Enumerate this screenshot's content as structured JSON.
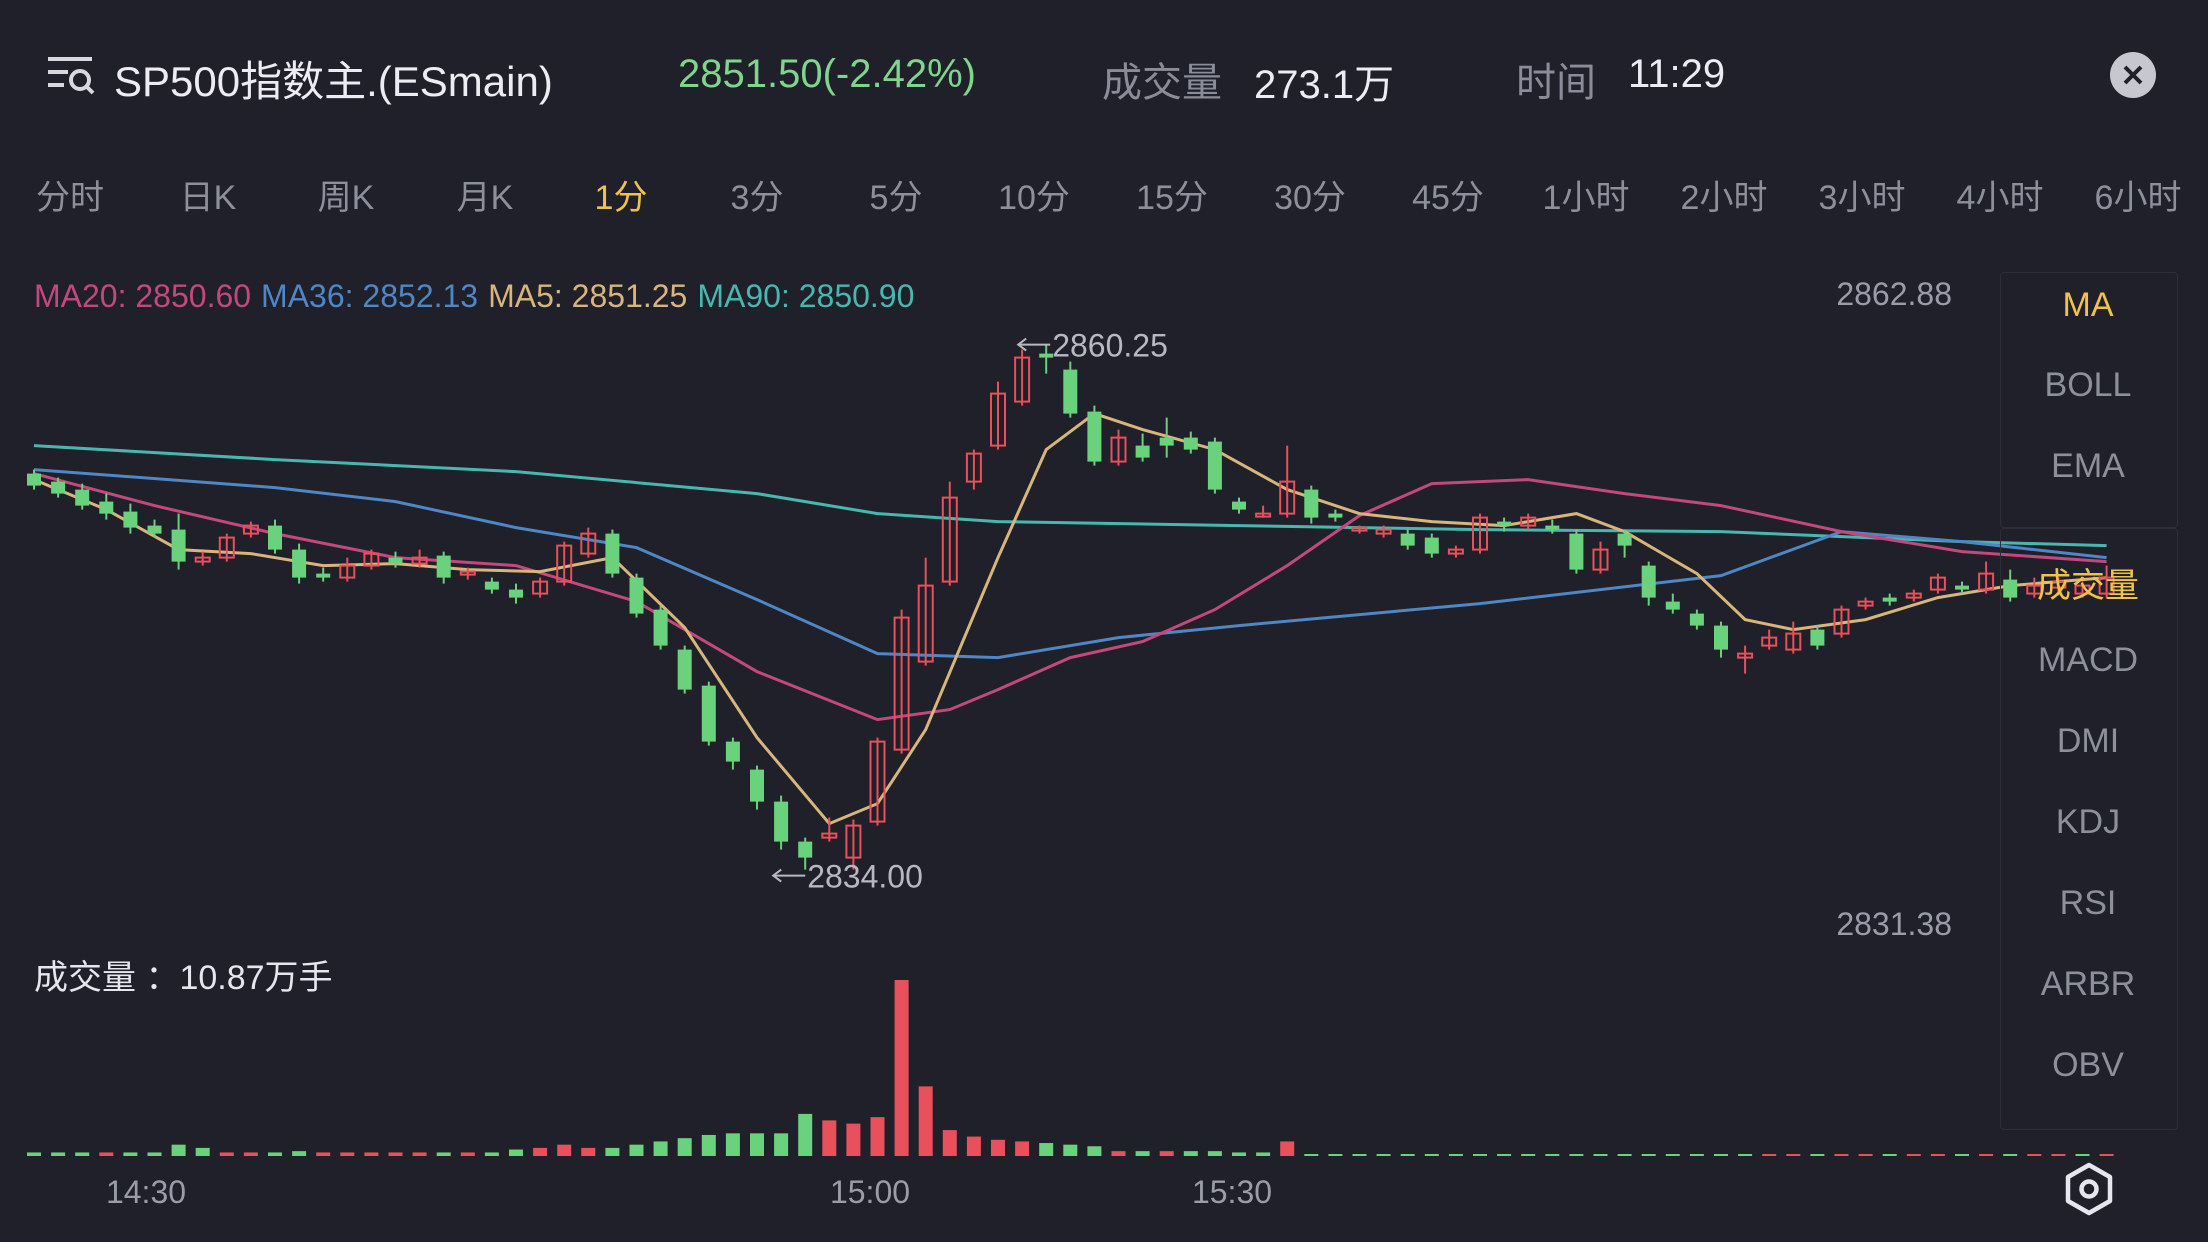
{
  "header": {
    "title": "SP500指数主.(ESmain)",
    "price": "2851.50(-2.42%)",
    "volume_label": "成交量",
    "volume_value": "273.1万",
    "time_label": "时间",
    "time_value": "11:29"
  },
  "tabs": [
    "分时",
    "日K",
    "周K",
    "月K",
    "1分",
    "3分",
    "5分",
    "10分",
    "15分",
    "30分",
    "45分",
    "1小时",
    "2小时",
    "3小时",
    "4小时",
    "6小时"
  ],
  "active_tab": "1分",
  "legend": {
    "ma20": "MA20: 2850.60",
    "ma36": "MA36: 2852.13",
    "ma5": "MA5: 2851.25",
    "ma90": "MA90: 2850.90"
  },
  "axis": {
    "top": "2862.88",
    "bottom": "2831.38"
  },
  "annotations": {
    "high": "2860.25",
    "low": "2834.00"
  },
  "volume_caption": "成交量 ：10.87万手",
  "x_labels": [
    "14:30",
    "15:00",
    "15:30"
  ],
  "side_indicators": {
    "main": [
      "MA",
      "BOLL",
      "EMA"
    ],
    "sub": [
      "成交量",
      "MACD",
      "DMI",
      "KDJ",
      "RSI",
      "ARBR",
      "OBV"
    ]
  },
  "colors": {
    "up": "#e8505b",
    "down": "#6ad27d",
    "ma5": "#d8b57c",
    "ma20": "#c2487d",
    "ma36": "#4f86c6",
    "ma90": "#48b7b1",
    "accent": "#f0c14b",
    "background": "#1f2029"
  },
  "icons": {
    "menu": "menu-search-icon",
    "close": "close-icon",
    "settings": "settings-hexagon-icon"
  },
  "chart_data": {
    "type": "candlestick",
    "ylim": [
      2831.38,
      2862.88
    ],
    "x_ticks": [
      "14:30",
      "15:00",
      "15:30"
    ],
    "high_marker": 2860.25,
    "low_marker": 2834.0,
    "candles": [
      [
        2853.8,
        2853.2,
        2854.0,
        2853.0
      ],
      [
        2853.4,
        2852.8,
        2853.6,
        2852.6
      ],
      [
        2853.0,
        2852.2,
        2853.3,
        2852.0
      ],
      [
        2852.4,
        2851.8,
        2852.8,
        2851.5
      ],
      [
        2851.9,
        2851.1,
        2852.3,
        2850.8
      ],
      [
        2851.2,
        2850.8,
        2851.5,
        2850.6
      ],
      [
        2851.0,
        2849.4,
        2851.8,
        2849.0
      ],
      [
        2849.4,
        2849.6,
        2849.9,
        2849.2
      ],
      [
        2849.6,
        2850.6,
        2850.8,
        2849.4
      ],
      [
        2850.8,
        2851.2,
        2851.4,
        2850.6
      ],
      [
        2851.2,
        2850.0,
        2851.5,
        2849.8
      ],
      [
        2850.0,
        2848.6,
        2850.3,
        2848.3
      ],
      [
        2848.8,
        2848.6,
        2849.1,
        2848.4
      ],
      [
        2848.6,
        2849.2,
        2849.6,
        2848.4
      ],
      [
        2849.2,
        2849.8,
        2850.0,
        2849.0
      ],
      [
        2849.6,
        2849.3,
        2849.9,
        2849.1
      ],
      [
        2849.3,
        2849.6,
        2850.0,
        2849.1
      ],
      [
        2849.7,
        2848.6,
        2849.9,
        2848.3
      ],
      [
        2848.8,
        2848.9,
        2849.1,
        2848.5
      ],
      [
        2848.4,
        2848.0,
        2848.6,
        2847.8
      ],
      [
        2848.0,
        2847.6,
        2848.3,
        2847.3
      ],
      [
        2847.8,
        2848.4,
        2848.6,
        2847.6
      ],
      [
        2848.4,
        2850.2,
        2850.4,
        2848.2
      ],
      [
        2849.8,
        2850.8,
        2851.1,
        2849.6
      ],
      [
        2850.8,
        2848.8,
        2851.0,
        2848.6
      ],
      [
        2848.6,
        2846.8,
        2848.8,
        2846.6
      ],
      [
        2847.0,
        2845.2,
        2847.2,
        2845.0
      ],
      [
        2845.0,
        2843.0,
        2845.2,
        2842.8
      ],
      [
        2843.2,
        2840.4,
        2843.4,
        2840.2
      ],
      [
        2840.4,
        2839.4,
        2840.6,
        2839.0
      ],
      [
        2839.0,
        2837.4,
        2839.2,
        2837.0
      ],
      [
        2837.4,
        2835.4,
        2837.7,
        2835.0
      ],
      [
        2835.4,
        2834.6,
        2835.6,
        2834.0
      ],
      [
        2835.6,
        2835.8,
        2836.6,
        2835.4
      ],
      [
        2834.6,
        2836.2,
        2836.5,
        2834.0
      ],
      [
        2836.4,
        2840.4,
        2840.6,
        2836.2
      ],
      [
        2840.0,
        2846.6,
        2847.0,
        2839.8
      ],
      [
        2844.4,
        2848.2,
        2849.6,
        2844.2
      ],
      [
        2848.4,
        2852.6,
        2853.4,
        2848.2
      ],
      [
        2853.4,
        2854.8,
        2855.0,
        2853.0
      ],
      [
        2855.2,
        2857.8,
        2858.4,
        2855.0
      ],
      [
        2857.4,
        2859.6,
        2860.0,
        2857.2
      ],
      [
        2859.8,
        2859.6,
        2860.25,
        2858.8
      ],
      [
        2859.0,
        2856.8,
        2859.4,
        2856.6
      ],
      [
        2856.9,
        2854.4,
        2857.2,
        2854.2
      ],
      [
        2854.4,
        2855.6,
        2856.0,
        2854.2
      ],
      [
        2855.2,
        2854.6,
        2855.8,
        2854.4
      ],
      [
        2855.6,
        2855.2,
        2856.6,
        2854.6
      ],
      [
        2855.6,
        2855.0,
        2855.9,
        2854.8
      ],
      [
        2855.4,
        2853.0,
        2855.6,
        2852.8
      ],
      [
        2852.4,
        2852.0,
        2852.6,
        2851.8
      ],
      [
        2851.8,
        2851.8,
        2852.2,
        2851.6
      ],
      [
        2851.8,
        2853.4,
        2855.2,
        2851.6
      ],
      [
        2853.0,
        2851.6,
        2853.2,
        2851.3
      ],
      [
        2851.8,
        2851.6,
        2852.0,
        2851.4
      ],
      [
        2851.0,
        2851.1,
        2851.2,
        2850.8
      ],
      [
        2850.8,
        2851.0,
        2851.2,
        2850.6
      ],
      [
        2850.8,
        2850.2,
        2851.0,
        2850.0
      ],
      [
        2850.6,
        2849.8,
        2850.8,
        2849.6
      ],
      [
        2849.8,
        2850.0,
        2850.2,
        2849.6
      ],
      [
        2850.0,
        2851.6,
        2851.8,
        2849.8
      ],
      [
        2851.4,
        2851.2,
        2851.6,
        2850.9
      ],
      [
        2851.2,
        2851.6,
        2851.8,
        2851.0
      ],
      [
        2851.2,
        2851.0,
        2851.5,
        2850.8
      ],
      [
        2850.8,
        2849.0,
        2851.0,
        2848.8
      ],
      [
        2849.0,
        2850.0,
        2850.4,
        2848.8
      ],
      [
        2850.8,
        2850.2,
        2851.0,
        2849.6
      ],
      [
        2849.2,
        2847.6,
        2849.4,
        2847.2
      ],
      [
        2847.4,
        2847.0,
        2847.8,
        2846.8
      ],
      [
        2846.8,
        2846.2,
        2847.0,
        2846.0
      ],
      [
        2846.2,
        2845.0,
        2846.4,
        2844.6
      ],
      [
        2844.6,
        2844.8,
        2845.2,
        2843.8
      ],
      [
        2845.2,
        2845.6,
        2846.0,
        2845.0
      ],
      [
        2845.0,
        2845.8,
        2846.4,
        2844.8
      ],
      [
        2846.0,
        2845.2,
        2846.2,
        2845.0
      ],
      [
        2845.8,
        2847.0,
        2847.2,
        2845.6
      ],
      [
        2847.2,
        2847.4,
        2847.6,
        2847.0
      ],
      [
        2847.6,
        2847.4,
        2847.8,
        2847.2
      ],
      [
        2847.6,
        2847.8,
        2848.0,
        2847.4
      ],
      [
        2848.0,
        2848.6,
        2848.8,
        2847.8
      ],
      [
        2848.2,
        2848.0,
        2848.4,
        2847.8
      ],
      [
        2848.0,
        2848.8,
        2849.4,
        2847.8
      ],
      [
        2848.5,
        2847.6,
        2849.0,
        2847.4
      ],
      [
        2847.8,
        2848.2,
        2848.6,
        2847.6
      ],
      [
        2848.1,
        2848.4,
        2848.6,
        2847.7
      ],
      [
        2847.8,
        2848.2,
        2848.4,
        2847.6
      ],
      [
        2847.8,
        2848.6,
        2849.2,
        2847.6
      ]
    ],
    "ma_series": [
      {
        "name": "MA90",
        "values": [
          [
            0,
            2855.2
          ],
          [
            10,
            2854.5
          ],
          [
            20,
            2853.9
          ],
          [
            30,
            2852.8
          ],
          [
            35,
            2851.8
          ],
          [
            40,
            2851.4
          ],
          [
            50,
            2851.2
          ],
          [
            60,
            2851.0
          ],
          [
            70,
            2850.9
          ],
          [
            80,
            2850.4
          ],
          [
            86,
            2850.2
          ]
        ]
      },
      {
        "name": "MA36",
        "values": [
          [
            0,
            2854.0
          ],
          [
            10,
            2853.1
          ],
          [
            15,
            2852.4
          ],
          [
            20,
            2851.1
          ],
          [
            25,
            2850.1
          ],
          [
            30,
            2847.5
          ],
          [
            35,
            2844.8
          ],
          [
            40,
            2844.6
          ],
          [
            45,
            2845.6
          ],
          [
            50,
            2846.2
          ],
          [
            60,
            2847.3
          ],
          [
            70,
            2848.7
          ],
          [
            75,
            2850.9
          ],
          [
            80,
            2850.4
          ],
          [
            86,
            2849.6
          ]
        ]
      },
      {
        "name": "MA20",
        "values": [
          [
            0,
            2853.8
          ],
          [
            5,
            2852.2
          ],
          [
            10,
            2850.8
          ],
          [
            15,
            2849.6
          ],
          [
            20,
            2849.2
          ],
          [
            25,
            2847.4
          ],
          [
            30,
            2843.9
          ],
          [
            35,
            2841.5
          ],
          [
            38,
            2842.0
          ],
          [
            40,
            2843.0
          ],
          [
            43,
            2844.6
          ],
          [
            46,
            2845.4
          ],
          [
            49,
            2847.0
          ],
          [
            52,
            2849.2
          ],
          [
            55,
            2851.7
          ],
          [
            58,
            2853.3
          ],
          [
            62,
            2853.5
          ],
          [
            66,
            2852.8
          ],
          [
            70,
            2852.2
          ],
          [
            75,
            2850.9
          ],
          [
            80,
            2849.9
          ],
          [
            86,
            2849.4
          ]
        ]
      },
      {
        "name": "MA5",
        "values": [
          [
            0,
            2853.5
          ],
          [
            3,
            2852.0
          ],
          [
            6,
            2850.0
          ],
          [
            9,
            2849.8
          ],
          [
            12,
            2849.2
          ],
          [
            15,
            2849.3
          ],
          [
            18,
            2849.0
          ],
          [
            21,
            2848.9
          ],
          [
            24,
            2849.6
          ],
          [
            27,
            2846.1
          ],
          [
            30,
            2840.6
          ],
          [
            33,
            2836.3
          ],
          [
            35,
            2837.3
          ],
          [
            37,
            2841.0
          ],
          [
            40,
            2849.6
          ],
          [
            42,
            2855.0
          ],
          [
            44,
            2856.8
          ],
          [
            46,
            2856.0
          ],
          [
            49,
            2855.0
          ],
          [
            52,
            2853.0
          ],
          [
            55,
            2851.8
          ],
          [
            58,
            2851.4
          ],
          [
            61,
            2851.2
          ],
          [
            64,
            2851.8
          ],
          [
            66,
            2850.9
          ],
          [
            69,
            2848.8
          ],
          [
            71,
            2846.5
          ],
          [
            73,
            2846.0
          ],
          [
            76,
            2846.5
          ],
          [
            79,
            2847.6
          ],
          [
            82,
            2848.2
          ],
          [
            86,
            2848.6
          ]
        ]
      }
    ],
    "volume_unit": "万手",
    "volume_max": 10.87,
    "volumes": [
      {
        "v": 0.22,
        "up": false
      },
      {
        "v": 0.22,
        "up": false
      },
      {
        "v": 0.22,
        "up": false
      },
      {
        "v": 0.22,
        "up": true
      },
      {
        "v": 0.22,
        "up": false
      },
      {
        "v": 0.22,
        "up": false
      },
      {
        "v": 0.7,
        "up": false
      },
      {
        "v": 0.5,
        "up": false
      },
      {
        "v": 0.22,
        "up": true
      },
      {
        "v": 0.22,
        "up": true
      },
      {
        "v": 0.22,
        "up": false
      },
      {
        "v": 0.3,
        "up": false
      },
      {
        "v": 0.22,
        "up": true
      },
      {
        "v": 0.22,
        "up": true
      },
      {
        "v": 0.22,
        "up": true
      },
      {
        "v": 0.22,
        "up": true
      },
      {
        "v": 0.22,
        "up": true
      },
      {
        "v": 0.22,
        "up": false
      },
      {
        "v": 0.22,
        "up": true
      },
      {
        "v": 0.22,
        "up": false
      },
      {
        "v": 0.4,
        "up": false
      },
      {
        "v": 0.5,
        "up": true
      },
      {
        "v": 0.7,
        "up": true
      },
      {
        "v": 0.5,
        "up": true
      },
      {
        "v": 0.5,
        "up": false
      },
      {
        "v": 0.7,
        "up": false
      },
      {
        "v": 0.9,
        "up": false
      },
      {
        "v": 1.1,
        "up": false
      },
      {
        "v": 1.3,
        "up": false
      },
      {
        "v": 1.4,
        "up": false
      },
      {
        "v": 1.4,
        "up": false
      },
      {
        "v": 1.4,
        "up": false
      },
      {
        "v": 2.6,
        "up": false
      },
      {
        "v": 2.2,
        "up": true
      },
      {
        "v": 2.0,
        "up": true
      },
      {
        "v": 2.4,
        "up": true
      },
      {
        "v": 10.87,
        "up": true
      },
      {
        "v": 4.3,
        "up": true
      },
      {
        "v": 1.6,
        "up": true
      },
      {
        "v": 1.2,
        "up": true
      },
      {
        "v": 1.0,
        "up": true
      },
      {
        "v": 0.9,
        "up": true
      },
      {
        "v": 0.8,
        "up": false
      },
      {
        "v": 0.7,
        "up": false
      },
      {
        "v": 0.6,
        "up": false
      },
      {
        "v": 0.3,
        "up": true
      },
      {
        "v": 0.3,
        "up": false
      },
      {
        "v": 0.3,
        "up": true
      },
      {
        "v": 0.3,
        "up": false
      },
      {
        "v": 0.3,
        "up": false
      },
      {
        "v": 0.22,
        "up": false
      },
      {
        "v": 0.22,
        "up": false
      },
      {
        "v": 0.9,
        "up": true
      },
      {
        "v": 0.1,
        "up": false
      },
      {
        "v": 0.08,
        "up": false
      },
      {
        "v": 0.08,
        "up": false
      },
      {
        "v": 0.08,
        "up": false
      },
      {
        "v": 0.08,
        "up": false
      },
      {
        "v": 0.08,
        "up": false
      },
      {
        "v": 0.08,
        "up": false
      },
      {
        "v": 0.08,
        "up": false
      },
      {
        "v": 0.08,
        "up": false
      },
      {
        "v": 0.08,
        "up": false
      },
      {
        "v": 0.08,
        "up": false
      },
      {
        "v": 0.08,
        "up": false
      },
      {
        "v": 0.08,
        "up": false
      },
      {
        "v": 0.08,
        "up": false
      },
      {
        "v": 0.08,
        "up": false
      },
      {
        "v": 0.08,
        "up": false
      },
      {
        "v": 0.08,
        "up": false
      },
      {
        "v": 0.08,
        "up": false
      },
      {
        "v": 0.08,
        "up": false
      },
      {
        "v": 0.08,
        "up": true
      },
      {
        "v": 0.08,
        "up": true
      },
      {
        "v": 0.08,
        "up": false
      },
      {
        "v": 0.08,
        "up": true
      },
      {
        "v": 0.08,
        "up": true
      },
      {
        "v": 0.08,
        "up": false
      },
      {
        "v": 0.08,
        "up": true
      },
      {
        "v": 0.08,
        "up": true
      },
      {
        "v": 0.08,
        "up": false
      },
      {
        "v": 0.08,
        "up": true
      },
      {
        "v": 0.08,
        "up": false
      },
      {
        "v": 0.08,
        "up": true
      },
      {
        "v": 0.08,
        "up": true
      },
      {
        "v": 0.08,
        "up": false
      },
      {
        "v": 0.08,
        "up": true
      }
    ]
  }
}
